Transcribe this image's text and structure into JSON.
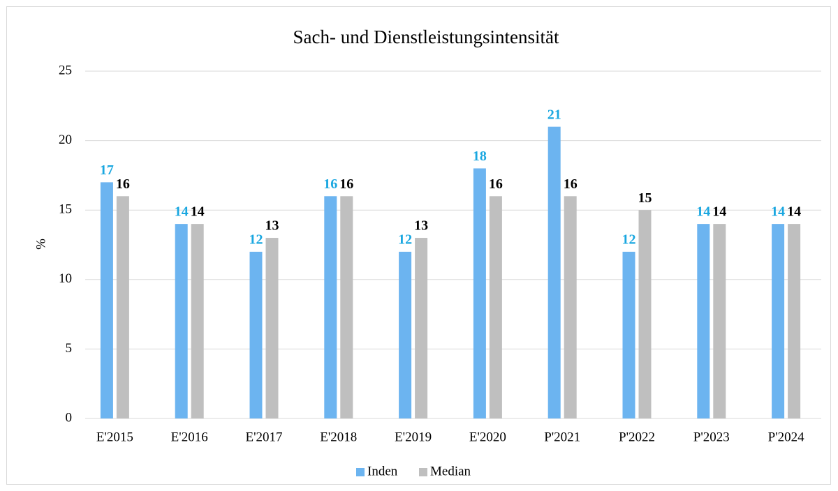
{
  "chart_data": {
    "type": "bar",
    "title": "Sach- und Dienstleistungsintensität",
    "y_label": "%",
    "categories": [
      "E'2015",
      "E'2016",
      "E'2017",
      "E'2018",
      "E'2019",
      "E'2020",
      "P'2021",
      "P'2022",
      "P'2023",
      "P'2024"
    ],
    "series": [
      {
        "name": "Inden",
        "color": "#6cb4f0",
        "label_color": "#1aa7e0",
        "values": [
          17,
          14,
          12,
          16,
          12,
          18,
          21,
          12,
          14,
          14
        ]
      },
      {
        "name": "Median",
        "color": "#bfbfbf",
        "label_color": "#000000",
        "values": [
          16,
          14,
          13,
          16,
          13,
          16,
          16,
          15,
          14,
          14
        ]
      }
    ],
    "ylim": [
      0,
      25
    ],
    "yticks": [
      0,
      5,
      10,
      15,
      20,
      25
    ],
    "grid": true,
    "legend": "bottom"
  }
}
